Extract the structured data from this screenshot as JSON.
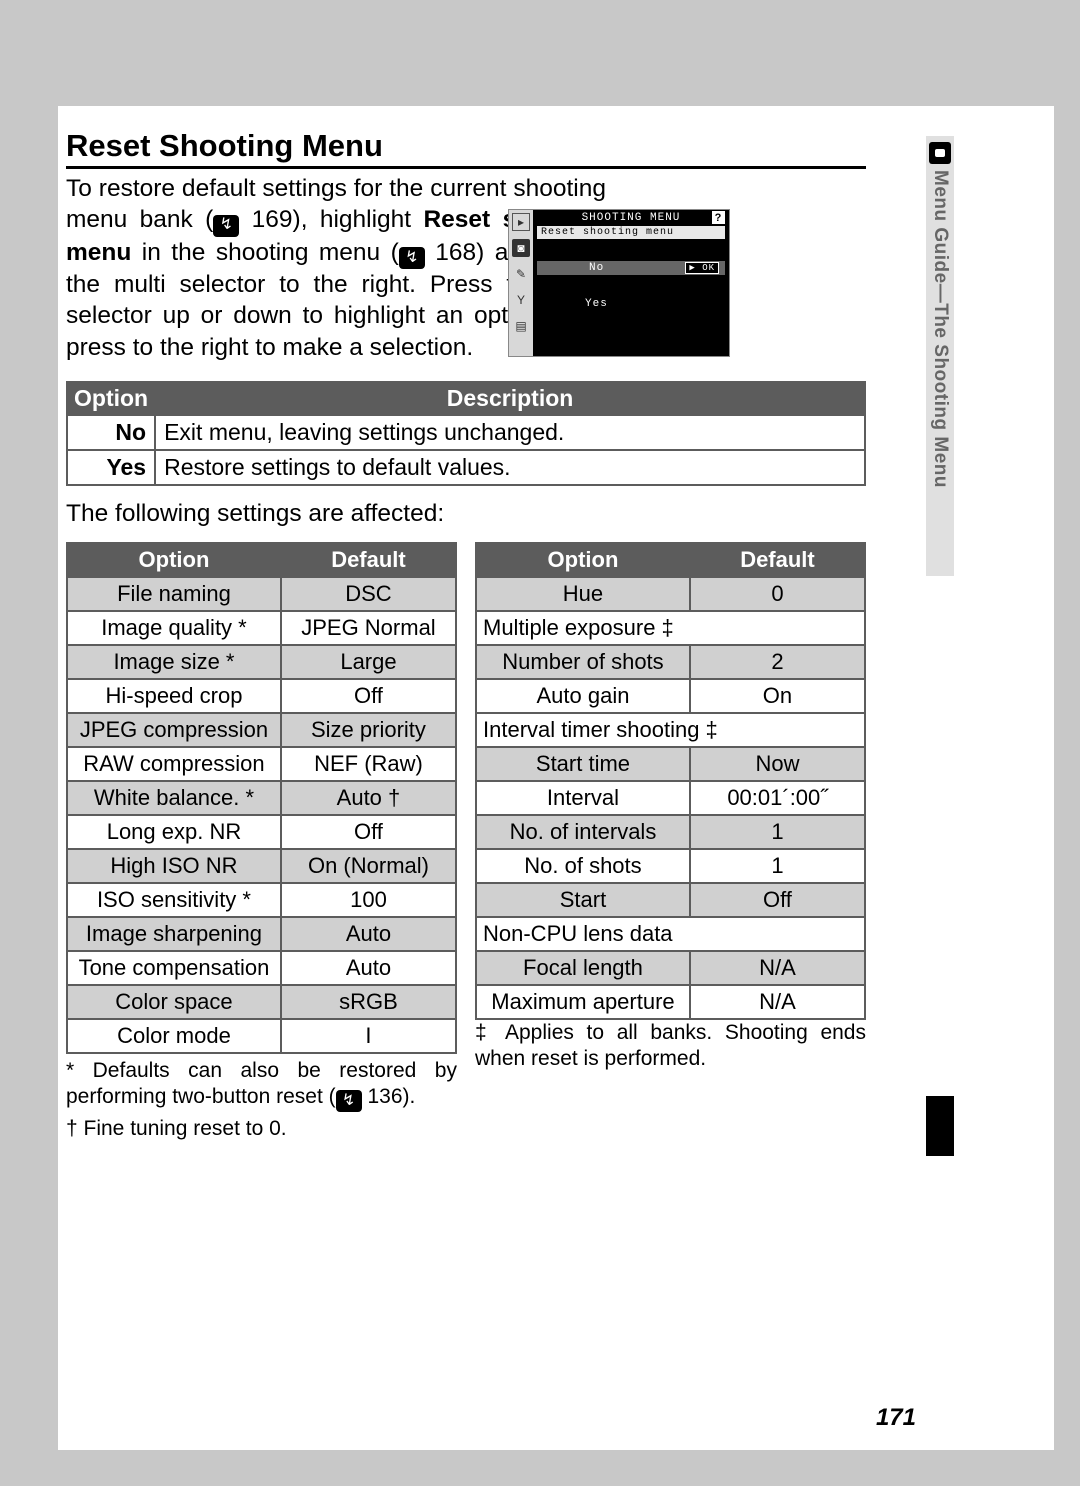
{
  "heading": "Reset Shooting Menu",
  "intro_part1": "To restore default settings for the current shooting menu bank (",
  "intro_ref1": "169",
  "intro_part2": "), highlight ",
  "intro_bold1": "Reset shooting menu",
  "intro_part3": " in the shooting menu (",
  "intro_ref2": "168",
  "intro_part4": ") and press the multi selector to the right.  Press the multi selector up or down to highlight an option, then press to the right to make a selection.",
  "camera": {
    "title": "SHOOTING MENU",
    "sub": "Reset shooting menu",
    "no": "No",
    "ok": "▶ OK",
    "yes": "Yes"
  },
  "sidetab": "Menu Guide—The Shooting Menu",
  "option_desc": {
    "h_option": "Option",
    "h_desc": "Description",
    "rows": [
      {
        "opt": "No",
        "desc": "Exit menu, leaving settings unchanged."
      },
      {
        "opt": "Yes",
        "desc": "Restore settings to default values."
      }
    ]
  },
  "affected_line": "The following settings are affected:",
  "settings_left": {
    "h_option": "Option",
    "h_default": "Default",
    "rows": [
      {
        "opt": "File naming",
        "def": "DSC",
        "shade": true
      },
      {
        "opt": "Image quality *",
        "def": "JPEG Normal",
        "shade": false
      },
      {
        "opt": "Image size *",
        "def": "Large",
        "shade": true
      },
      {
        "opt": "Hi-speed crop",
        "def": "Off",
        "shade": false
      },
      {
        "opt": "JPEG compression",
        "def": "Size priority",
        "shade": true
      },
      {
        "opt": "RAW compression",
        "def": "NEF (Raw)",
        "shade": false
      },
      {
        "opt": "White balance. *",
        "def": "Auto †",
        "shade": true
      },
      {
        "opt": "Long exp. NR",
        "def": "Off",
        "shade": false
      },
      {
        "opt": "High ISO NR",
        "def": "On (Normal)",
        "shade": true
      },
      {
        "opt": "ISO sensitivity *",
        "def": "100",
        "shade": false
      },
      {
        "opt": "Image sharpening",
        "def": "Auto",
        "shade": true
      },
      {
        "opt": "Tone compensation",
        "def": "Auto",
        "shade": false
      },
      {
        "opt": "Color space",
        "def": "sRGB",
        "shade": true
      },
      {
        "opt": "Color mode",
        "def": "I",
        "shade": false
      }
    ]
  },
  "settings_right": {
    "h_option": "Option",
    "h_default": "Default",
    "rows": [
      {
        "type": "row",
        "opt": "Hue",
        "def": "0",
        "shade": true
      },
      {
        "type": "section",
        "label": "Multiple exposure ‡"
      },
      {
        "type": "row",
        "opt": "Number of shots",
        "def": "2",
        "shade": true
      },
      {
        "type": "row",
        "opt": "Auto gain",
        "def": "On",
        "shade": false
      },
      {
        "type": "section",
        "label": "Interval timer shooting ‡"
      },
      {
        "type": "row",
        "opt": "Start time",
        "def": "Now",
        "shade": true
      },
      {
        "type": "row",
        "opt": "Interval",
        "def": "00:01´:00˝",
        "shade": false
      },
      {
        "type": "row",
        "opt": "No. of intervals",
        "def": "1",
        "shade": true
      },
      {
        "type": "row",
        "opt": "No. of shots",
        "def": "1",
        "shade": false
      },
      {
        "type": "row",
        "opt": "Start",
        "def": "Off",
        "shade": true
      },
      {
        "type": "section",
        "label": "Non-CPU lens data"
      },
      {
        "type": "row",
        "opt": "Focal length",
        "def": "N/A",
        "shade": true
      },
      {
        "type": "row",
        "opt": "Maximum aperture",
        "def": "N/A",
        "shade": false
      }
    ]
  },
  "footnote_left1a": "* Defaults can also be restored by performing two-button reset (",
  "footnote_left1_ref": "136",
  "footnote_left1b": ").",
  "footnote_left2": "† Fine tuning reset to 0.",
  "footnote_right": "‡ Applies to all banks.  Shooting ends when reset is performed.",
  "pagenum": "171"
}
